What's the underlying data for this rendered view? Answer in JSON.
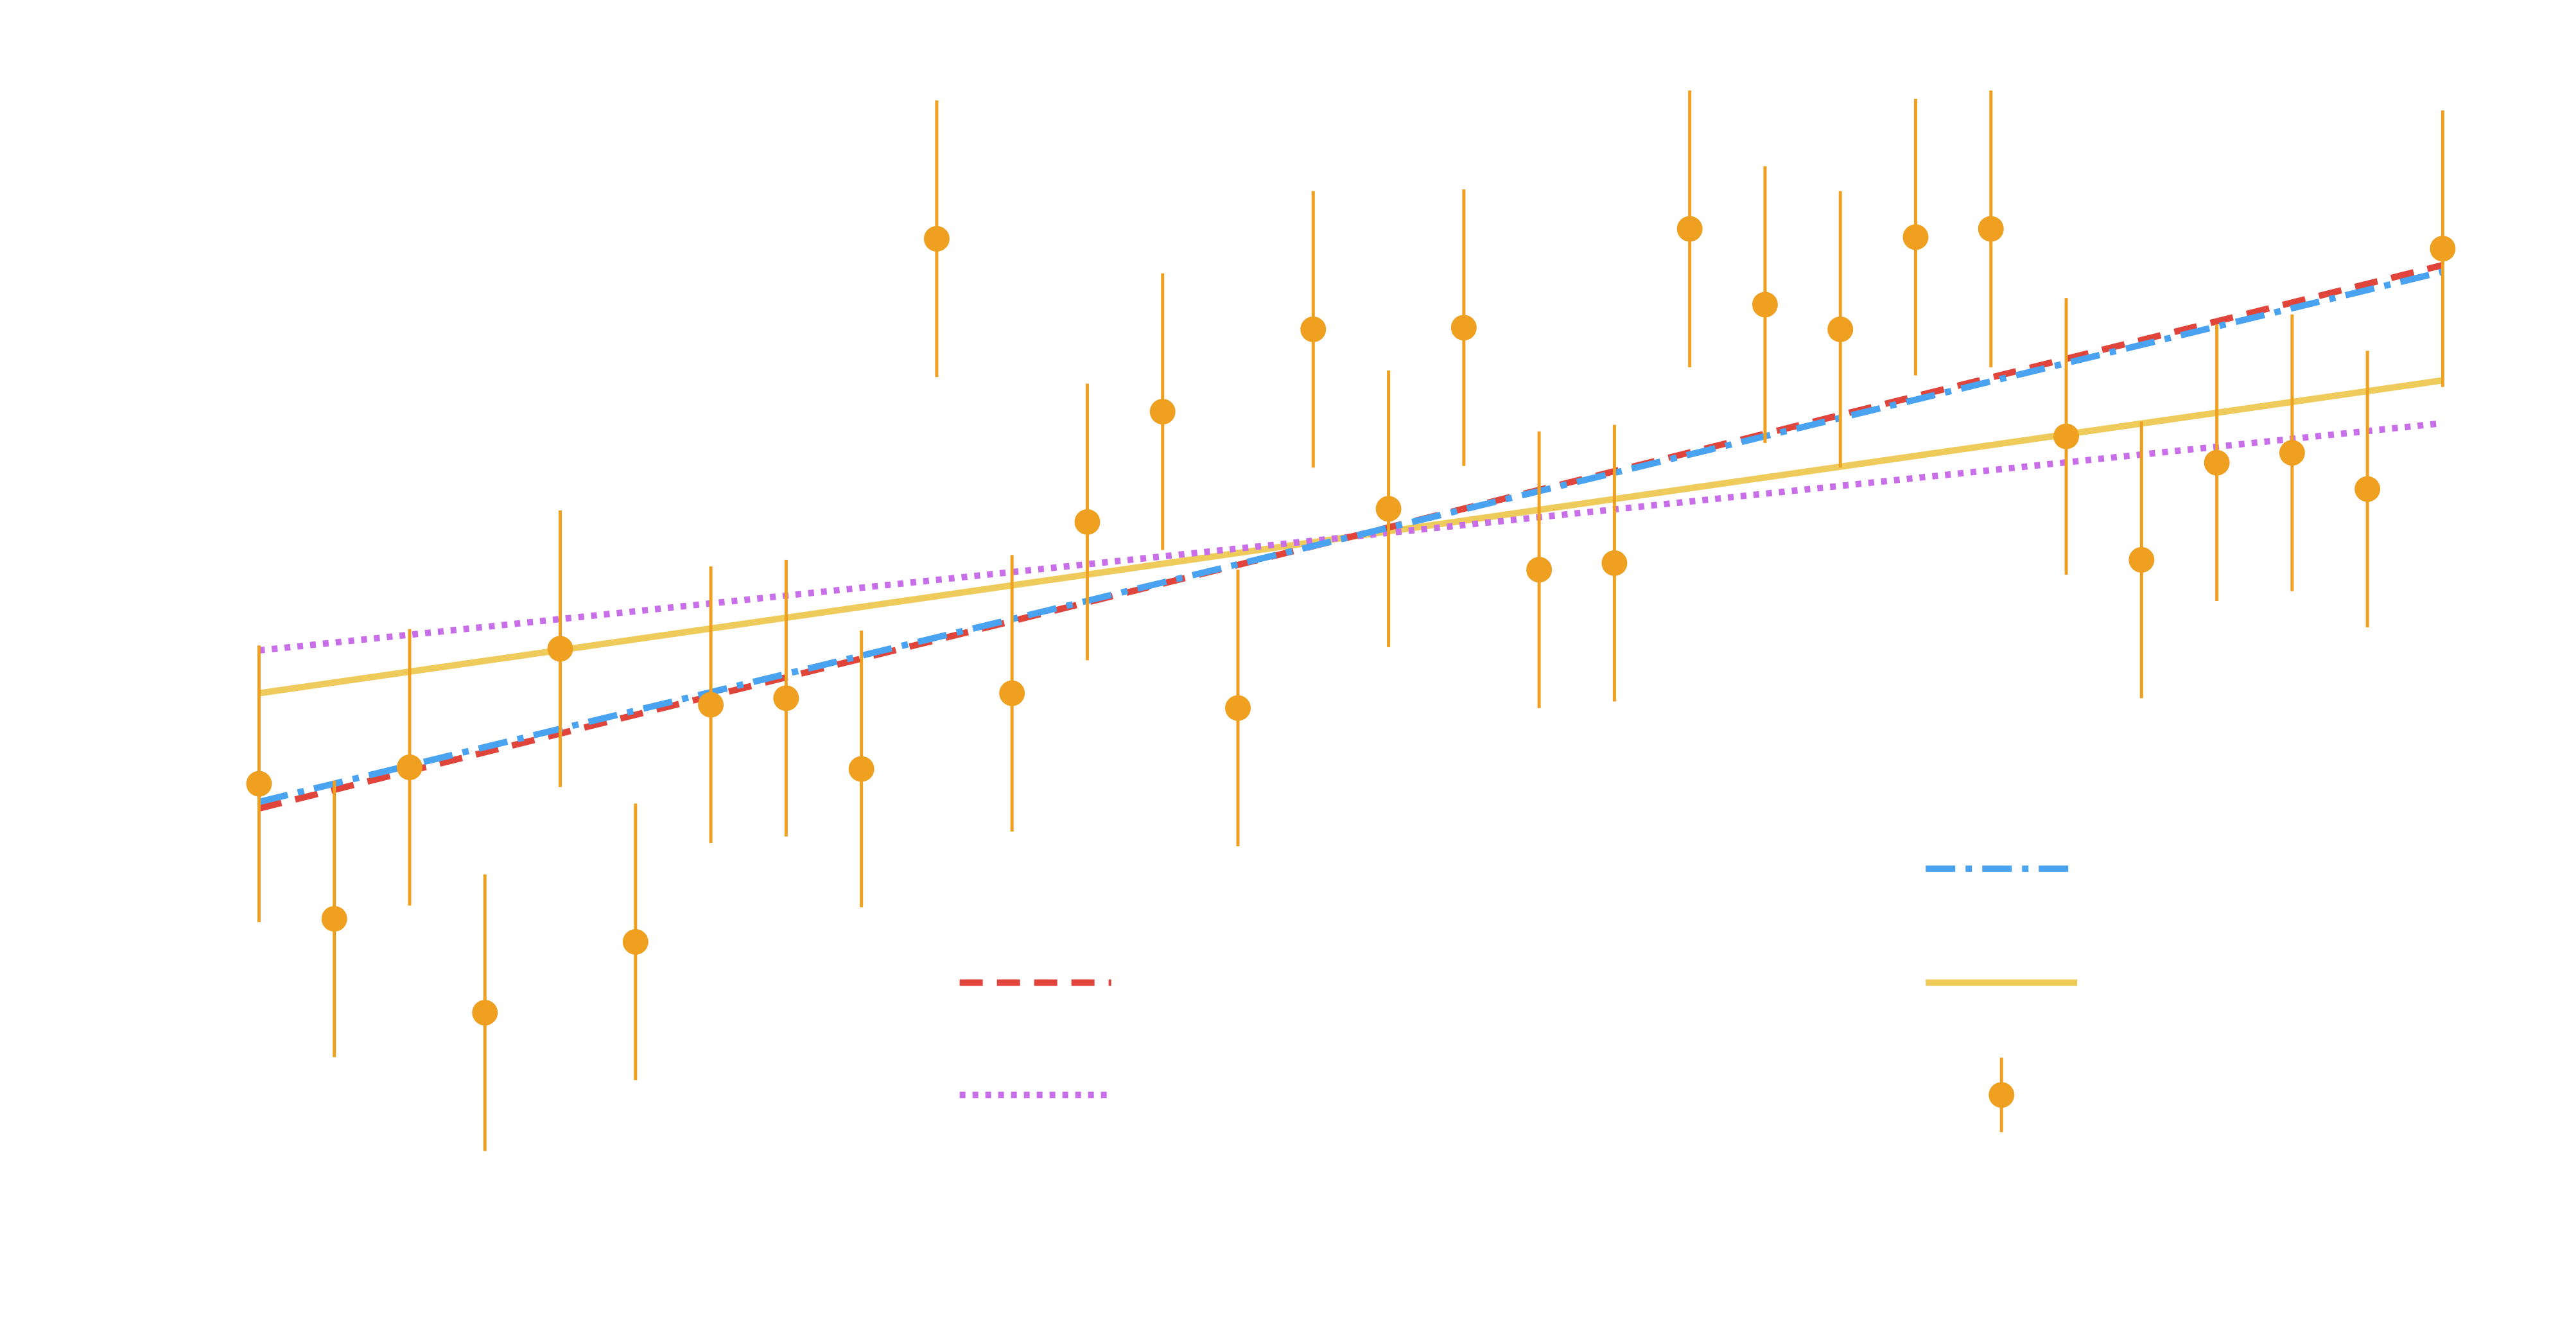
{
  "chart_data": {
    "type": "scatter",
    "xlim": [
      -3.44,
      30.77
    ],
    "ylim": [
      -1.15,
      7
    ],
    "series": [
      {
        "type": "errorbar",
        "color": "#f0a020",
        "x": [
          0,
          1,
          2,
          3,
          4,
          5,
          6,
          7,
          8,
          9,
          10,
          11,
          12,
          13,
          14,
          15,
          16,
          17,
          18,
          19,
          20,
          21,
          22,
          23,
          24,
          25,
          26,
          27,
          28,
          29
        ],
        "values": [
          2.24,
          1.42,
          2.34,
          0.85,
          3.06,
          1.28,
          2.72,
          2.76,
          2.33,
          5.55,
          2.79,
          3.83,
          4.5,
          2.7,
          5.0,
          3.91,
          5.01,
          3.54,
          3.58,
          5.61,
          5.15,
          5.0,
          5.56,
          5.61,
          4.35,
          3.6,
          4.19,
          4.25,
          4.03,
          5.49
        ],
        "errors": [
          0.84,
          0.84,
          0.84,
          0.84,
          0.84,
          0.84,
          0.84,
          0.84,
          0.84,
          0.84,
          0.84,
          0.84,
          0.84,
          0.84,
          0.84,
          0.84,
          0.84,
          0.84,
          0.84,
          0.84,
          0.84,
          0.84,
          0.84,
          0.84,
          0.84,
          0.84,
          0.84,
          0.84,
          0.84,
          0.84
        ]
      },
      {
        "type": "line",
        "style": "dashed",
        "color": "#e0443a",
        "x": [
          0,
          29
        ],
        "values": [
          2.09,
          5.39
        ]
      },
      {
        "type": "line",
        "style": "dashdot",
        "color": "#4aa3f0",
        "x": [
          0,
          29
        ],
        "values": [
          2.13,
          5.35
        ]
      },
      {
        "type": "line",
        "style": "solid",
        "color": "#eecb5a",
        "x": [
          0,
          29
        ],
        "values": [
          2.79,
          4.69
        ]
      },
      {
        "type": "line",
        "style": "dotted",
        "color": "#c86ee8",
        "x": [
          0,
          29
        ],
        "values": [
          3.05,
          4.43
        ]
      }
    ]
  }
}
